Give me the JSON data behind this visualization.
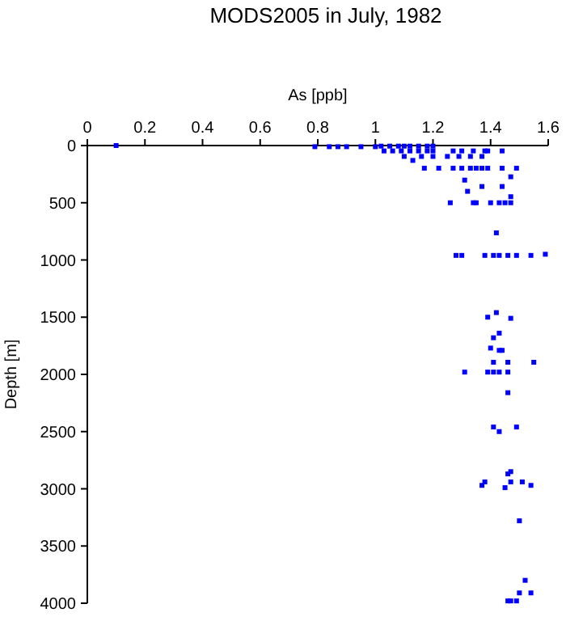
{
  "chart_data": {
    "type": "scatter",
    "title": "MODS2005 in July, 1982",
    "xlabel": "As [ppb]",
    "ylabel": "Depth [m]",
    "xlim": [
      0,
      1.6
    ],
    "xticks": [
      0,
      0.2,
      0.4,
      0.6,
      0.8,
      1,
      1.2,
      1.4,
      1.6
    ],
    "ylim": [
      4000,
      0
    ],
    "yticks": [
      0,
      500,
      1000,
      1500,
      2000,
      2500,
      3000,
      3500,
      4000
    ],
    "marker": "square",
    "grid": false,
    "series": [
      {
        "color": "#0000ff",
        "x": [
          0.1,
          0.79,
          0.84,
          0.87,
          0.9,
          0.95,
          1.0,
          1.02,
          1.05,
          1.08,
          1.1,
          1.12,
          1.15,
          1.18,
          1.2,
          1.03,
          1.06,
          1.09,
          1.12,
          1.15,
          1.18,
          1.2,
          1.27,
          1.3,
          1.34,
          1.38,
          1.39,
          1.44,
          1.1,
          1.16,
          1.2,
          1.25,
          1.29,
          1.33,
          1.37,
          1.13,
          1.17,
          1.22,
          1.27,
          1.3,
          1.33,
          1.35,
          1.37,
          1.39,
          1.44,
          1.49,
          1.47,
          1.31,
          1.37,
          1.44,
          1.32,
          1.47,
          1.26,
          1.34,
          1.35,
          1.4,
          1.43,
          1.45,
          1.47,
          1.42,
          1.28,
          1.3,
          1.38,
          1.41,
          1.43,
          1.46,
          1.49,
          1.54,
          1.59,
          1.42,
          1.39,
          1.47,
          1.43,
          1.41,
          1.4,
          1.43,
          1.44,
          1.41,
          1.46,
          1.55,
          1.31,
          1.39,
          1.41,
          1.43,
          1.46,
          1.46,
          1.41,
          1.49,
          1.43,
          1.47,
          1.46,
          1.38,
          1.47,
          1.51,
          1.37,
          1.54,
          1.45,
          1.5,
          1.52,
          1.5,
          1.54,
          1.46,
          1.47,
          1.49
        ],
        "values": [
          0,
          10,
          10,
          10,
          10,
          10,
          10,
          5,
          5,
          5,
          5,
          5,
          5,
          5,
          5,
          47,
          47,
          47,
          47,
          47,
          47,
          47,
          47,
          47,
          47,
          47,
          47,
          47,
          95,
          95,
          95,
          95,
          95,
          95,
          95,
          130,
          198,
          198,
          198,
          198,
          198,
          198,
          198,
          198,
          198,
          198,
          273,
          302,
          358,
          358,
          400,
          447,
          500,
          500,
          500,
          500,
          500,
          500,
          500,
          763,
          960,
          960,
          960,
          960,
          960,
          960,
          960,
          960,
          950,
          1460,
          1500,
          1510,
          1640,
          1680,
          1770,
          1790,
          1790,
          1894,
          1894,
          1894,
          1980,
          1980,
          1980,
          1980,
          1980,
          2160,
          2460,
          2460,
          2500,
          2850,
          2870,
          2940,
          2940,
          2940,
          2970,
          2970,
          2990,
          3280,
          3800,
          3910,
          3910,
          3980,
          3980,
          3980
        ]
      }
    ]
  }
}
